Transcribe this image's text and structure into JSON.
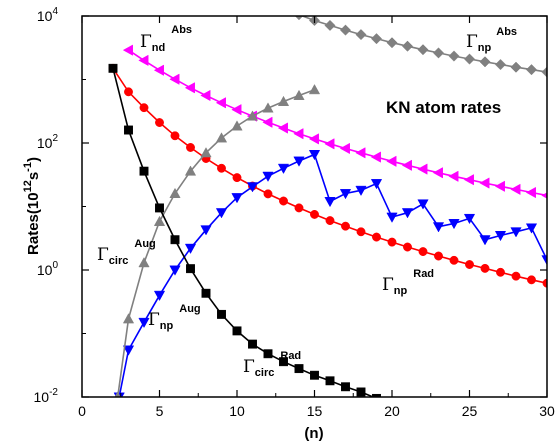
{
  "chart_data": {
    "type": "line",
    "title": "",
    "annotation": "KN atom rates",
    "xlabel": "(n)",
    "ylabel": "Rates(10^12 s^-1)",
    "ylabel_parts": {
      "main": "Rates(10",
      "exp1": "12",
      "mid": "s",
      "exp2": "-1",
      "end": ")"
    },
    "xlim": [
      0,
      30
    ],
    "ylim": [
      0.01,
      10000
    ],
    "yscale": "log",
    "grid": false,
    "legend": "none",
    "x_ticks": [
      0,
      5,
      10,
      15,
      20,
      25,
      30
    ],
    "y_ticks": [
      {
        "value": 0.01,
        "base": "10",
        "exp": "-2"
      },
      {
        "value": 1,
        "base": "10",
        "exp": "0"
      },
      {
        "value": 100,
        "base": "10",
        "exp": "2"
      },
      {
        "value": 10000,
        "base": "10",
        "exp": "4"
      }
    ],
    "series": [
      {
        "id": "np_abs",
        "color": "#808080",
        "marker": "diamond",
        "label": {
          "sub": "np",
          "sup": "Abs"
        },
        "x": [
          14,
          15,
          16,
          17,
          18,
          19,
          20,
          21,
          22,
          23,
          24,
          25,
          26,
          27,
          28,
          29,
          30
        ],
        "y": [
          10500,
          8500,
          7100,
          6000,
          5100,
          4400,
          3800,
          3350,
          2950,
          2620,
          2340,
          2100,
          1900,
          1720,
          1560,
          1430,
          1310
        ]
      },
      {
        "id": "nd_abs",
        "color": "#ff00ff",
        "marker": "triangle-left",
        "label": {
          "sub": "nd",
          "sup": "Abs"
        },
        "x": [
          3,
          4,
          5,
          6,
          7,
          8,
          9,
          10,
          11,
          12,
          13,
          14,
          15,
          16,
          17,
          18,
          19,
          20,
          21,
          22,
          23,
          24,
          25,
          26,
          27,
          28,
          29,
          30
        ],
        "y": [
          2900,
          2000,
          1400,
          1010,
          740,
          560,
          430,
          335,
          265,
          212,
          172,
          140,
          116,
          97,
          82,
          70,
          60,
          51.5,
          44.5,
          38.8,
          34,
          29.9,
          26.4,
          23.4,
          20.8,
          18.6,
          16.6,
          14.9
        ]
      },
      {
        "id": "np_rad",
        "color": "#ff0000",
        "marker": "circle",
        "label": {
          "sub": "np",
          "sup": "Rad"
        },
        "x": [
          2,
          3,
          4,
          5,
          6,
          7,
          8,
          9,
          10,
          11,
          12,
          13,
          14,
          15,
          16,
          17,
          18,
          19,
          20,
          21,
          22,
          23,
          24,
          25,
          26,
          27,
          28,
          29,
          30
        ],
        "y": [
          1500,
          640,
          360,
          210,
          130,
          85,
          57,
          40,
          28.5,
          21,
          15.8,
          12.2,
          9.5,
          7.5,
          6.0,
          4.9,
          4.0,
          3.3,
          2.75,
          2.3,
          1.95,
          1.66,
          1.42,
          1.22,
          1.06,
          0.92,
          0.8,
          0.7,
          0.62
        ]
      },
      {
        "id": "np_aug",
        "color": "#0000ff",
        "marker": "triangle-down",
        "label": {
          "sub": "np",
          "sup": "Aug"
        },
        "x": [
          2.4,
          3,
          4,
          5,
          6,
          7,
          8,
          9,
          10,
          11,
          12,
          13,
          14,
          15,
          16,
          17,
          18,
          19,
          20,
          21,
          22,
          23,
          24,
          25,
          26,
          27,
          28,
          29,
          30
        ],
        "y": [
          0.01,
          0.055,
          0.15,
          0.4,
          1.0,
          2.2,
          4.3,
          8.0,
          13.8,
          20.5,
          30,
          40,
          52,
          66,
          12,
          16,
          18,
          23,
          6.8,
          8.0,
          11,
          4.8,
          5.4,
          6.5,
          3.0,
          3.5,
          4.0,
          4.6,
          1.45
        ]
      },
      {
        "id": "circ_aug",
        "color": "#808080",
        "marker": "triangle-up",
        "label": {
          "sub": "circ",
          "sup": "Aug"
        },
        "x": [
          2.3,
          3,
          4,
          5,
          6,
          7,
          8,
          9,
          10,
          11,
          12,
          13,
          14,
          15
        ],
        "y": [
          0.01,
          0.17,
          1.3,
          5.8,
          16,
          36,
          70,
          120,
          185,
          265,
          355,
          450,
          560,
          690
        ]
      },
      {
        "id": "circ_rad",
        "color": "#000000",
        "marker": "square",
        "label": {
          "sub": "circ",
          "sup": "Rad"
        },
        "x": [
          2,
          3,
          4,
          5,
          6,
          7,
          8,
          9,
          10,
          11,
          12,
          13,
          14,
          15,
          16,
          17,
          18,
          19
        ],
        "y": [
          1500,
          160,
          36,
          9.5,
          3.0,
          1.05,
          0.43,
          0.2,
          0.11,
          0.068,
          0.048,
          0.036,
          0.028,
          0.022,
          0.018,
          0.0145,
          0.012,
          0.0095
        ]
      }
    ]
  }
}
